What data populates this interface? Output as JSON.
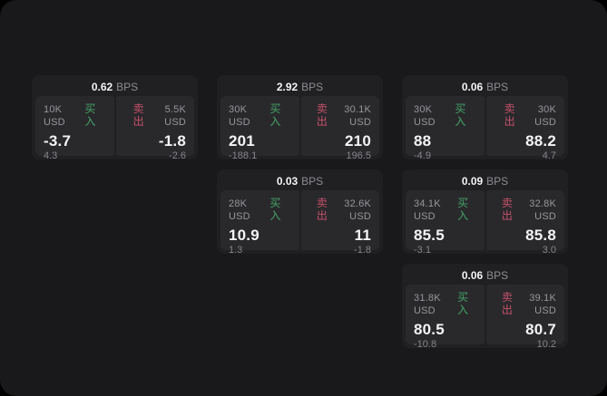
{
  "labels": {
    "bps": "BPS",
    "buy": "买入",
    "sell": "卖出"
  },
  "colors": {
    "buy": "#46a368",
    "sell": "#c65069",
    "value": "#f4f4f5",
    "muted": "#97979b",
    "window_bg": "#19191b",
    "card_bg": "#202023",
    "pane_bg": "#29292c"
  },
  "cards": [
    {
      "bps": "0.62",
      "buy": {
        "amount": "10K USD",
        "price": "-3.7",
        "delta": "4.3"
      },
      "sell": {
        "amount": "5.5K USD",
        "price": "-1.8",
        "delta": "-2.6"
      }
    },
    {
      "bps": "2.92",
      "buy": {
        "amount": "30K USD",
        "price": "201",
        "delta": "-188.1"
      },
      "sell": {
        "amount": "30.1K USD",
        "price": "210",
        "delta": "196.5"
      }
    },
    {
      "bps": "0.06",
      "buy": {
        "amount": "30K USD",
        "price": "88",
        "delta": "-4.9"
      },
      "sell": {
        "amount": "30K USD",
        "price": "88.2",
        "delta": "4.7"
      }
    },
    {
      "bps": "0.03",
      "buy": {
        "amount": "28K USD",
        "price": "10.9",
        "delta": "1.3"
      },
      "sell": {
        "amount": "32.6K USD",
        "price": "11",
        "delta": "-1.8"
      }
    },
    {
      "bps": "0.09",
      "buy": {
        "amount": "34.1K USD",
        "price": "85.5",
        "delta": "-3.1"
      },
      "sell": {
        "amount": "32.8K USD",
        "price": "85.8",
        "delta": "3.0"
      }
    },
    {
      "bps": "0.06",
      "buy": {
        "amount": "31.8K USD",
        "price": "80.5",
        "delta": "-10.8"
      },
      "sell": {
        "amount": "39.1K USD",
        "price": "80.7",
        "delta": "10.2"
      }
    }
  ]
}
